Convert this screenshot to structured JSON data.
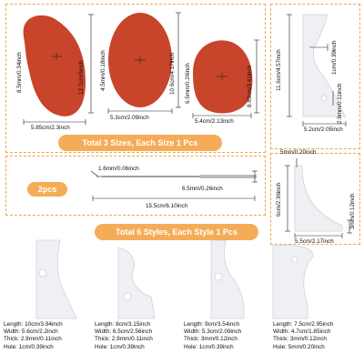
{
  "banners": {
    "sizes": "Total 3 Sizes, Each Size 1 Pcs",
    "needles": "2pcs",
    "styles": "Total 6 Styles, Each Style 1 Pcs"
  },
  "ribs": {
    "large": {
      "length": "12.7cm/5inch",
      "width": "5.85cm/2.3inch",
      "thick": "8.5mm/0.34inch"
    },
    "medium": {
      "length": "10.6cm/4.17inch",
      "width": "5.3cm/2.09inch",
      "thick": "4.5mm/0.18inch"
    },
    "small": {
      "length": "8.65cm/3.41inch",
      "width": "5.4cm/2.13inch",
      "thick": "6.5mm/0.26inch"
    }
  },
  "needle": {
    "tip": "1.6mm/0.06inch",
    "handle": "6.5mm/0.26inch",
    "length": "15.5cm/6.10inch"
  },
  "tall_scraper": {
    "height": "11.6cm/4.57inch",
    "hole": "1cm/0.39inch",
    "thick": "2.9mm/0.11inch",
    "width": "5.2cm/2.05inch"
  },
  "corner_scraper": {
    "hole": "5mm/0.20inch",
    "height": "6cm/2.36inch",
    "thick": "3mm/0.12inch",
    "width": "5.5cm/2.17inch"
  },
  "styles": [
    {
      "length": "10cm/3.94inch",
      "width": "5.6cm/2.2inch",
      "thick": "2.9mm/0.11inch",
      "hole": "1cm/0.39inch"
    },
    {
      "length": "8cm/3.15inch",
      "width": "6.5cm/2.56inch",
      "thick": "2.9mm/0.11inch",
      "hole": "1cm/0.39inch"
    },
    {
      "length": "9cm/3.54inch",
      "width": "5.3cm/2.09inch",
      "thick": "3mm/0.12inch",
      "hole": "1cm/0.39inch"
    },
    {
      "length": "7.5cm/2.95inch",
      "width": "4.7cm/1.85inch",
      "thick": "3mm/0.12inch",
      "hole": "5mm/0.20inch"
    }
  ],
  "spec_labels": {
    "length": "Length:",
    "width": "Width:",
    "thick": "Thick:",
    "hole": "Hole:"
  },
  "colors": {
    "rib": "#c8442a",
    "accent": "#f5ac58",
    "tool": "#eef0f3",
    "needle": "#9aa0a6"
  }
}
